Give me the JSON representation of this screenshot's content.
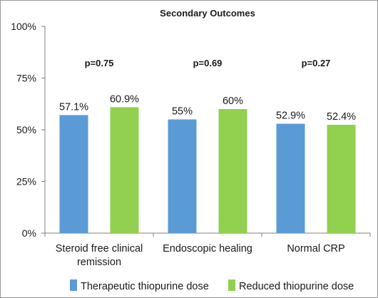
{
  "chart_data": {
    "type": "bar",
    "title": "Secondary Outcomes",
    "categories": [
      [
        "Steroid free clinical",
        "remission"
      ],
      [
        "Endoscopic healing"
      ],
      [
        "Normal CRP"
      ]
    ],
    "series": [
      {
        "name": "Therapeutic thiopurine dose",
        "color": "#5b9bd5",
        "values": [
          57.1,
          55,
          52.9
        ],
        "labels": [
          "57.1%",
          "55%",
          "52.9%"
        ]
      },
      {
        "name": "Reduced thiopurine dose",
        "color": "#92d050",
        "values": [
          60.9,
          60,
          52.4
        ],
        "labels": [
          "60.9%",
          "60%",
          "52.4%"
        ]
      }
    ],
    "annotations": [
      "p=0.75",
      "p=0.69",
      "p=0.27"
    ],
    "ylim": [
      0,
      100
    ],
    "yticks": [
      0,
      25,
      50,
      75,
      100
    ],
    "ytick_labels": [
      "0%",
      "25%",
      "50%",
      "75%",
      "100%"
    ],
    "grid": false,
    "legend_position": "bottom"
  }
}
